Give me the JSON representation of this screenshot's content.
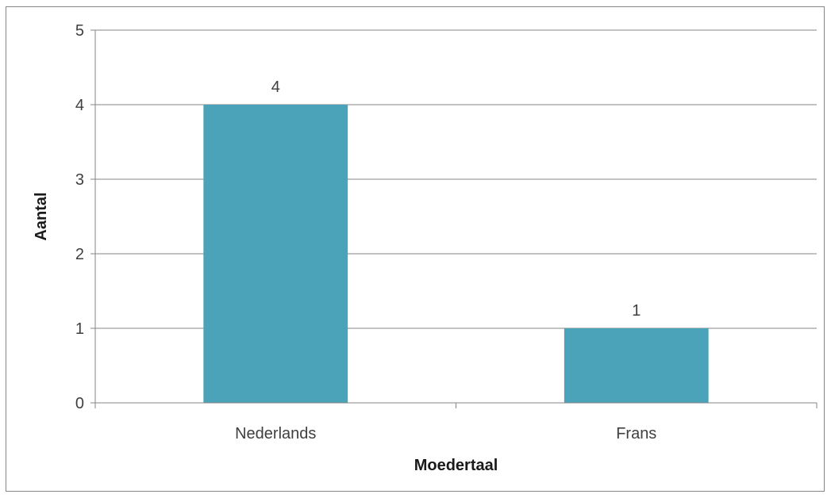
{
  "chart_data": {
    "type": "bar",
    "categories": [
      "Nederlands",
      "Frans"
    ],
    "values": [
      4,
      1
    ],
    "data_labels": [
      "4",
      "1"
    ],
    "title": "",
    "xlabel": "Moedertaal",
    "ylabel": "Aantal",
    "ylim": [
      0,
      5
    ],
    "yticks": [
      0,
      1,
      2,
      3,
      4,
      5
    ],
    "ytick_labels": [
      "0",
      "1",
      "2",
      "3",
      "4",
      "5"
    ],
    "grid": true,
    "legend": "none",
    "bar_color": "#4aa3b8",
    "gridline_color": "#868686"
  }
}
